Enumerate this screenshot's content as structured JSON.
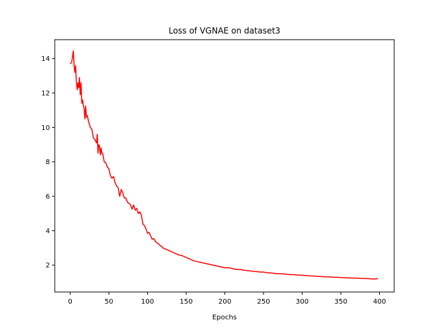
{
  "chart_data": {
    "type": "line",
    "title": "Loss of VGNAE on dataset3",
    "xlabel": "Epochs",
    "ylabel": "",
    "xlim": [
      -20,
      419
    ],
    "ylim": [
      0.44,
      15.1
    ],
    "xticks": [
      0,
      50,
      100,
      150,
      200,
      250,
      300,
      350,
      400
    ],
    "yticks": [
      2,
      4,
      6,
      8,
      10,
      12,
      14
    ],
    "grid": false,
    "series": [
      {
        "color": "#ff0000",
        "x": [
          0,
          2,
          4,
          5,
          6,
          7,
          8,
          9,
          10,
          11,
          12,
          13,
          14,
          15,
          16,
          17,
          18,
          19,
          20,
          21,
          22,
          24,
          26,
          28,
          30,
          32,
          34,
          35,
          36,
          37,
          38,
          39,
          40,
          41,
          42,
          44,
          46,
          48,
          50,
          52,
          54,
          56,
          58,
          60,
          62,
          64,
          66,
          68,
          70,
          72,
          74,
          76,
          78,
          80,
          82,
          84,
          86,
          88,
          90,
          92,
          94,
          96,
          98,
          100,
          102,
          104,
          106,
          108,
          110,
          112,
          114,
          116,
          118,
          120,
          125,
          130,
          135,
          140,
          145,
          150,
          155,
          160,
          165,
          170,
          175,
          180,
          185,
          190,
          195,
          200,
          205,
          210,
          215,
          220,
          225,
          230,
          235,
          240,
          245,
          250,
          255,
          260,
          265,
          270,
          275,
          280,
          285,
          290,
          295,
          300,
          305,
          310,
          315,
          320,
          325,
          330,
          335,
          340,
          345,
          350,
          355,
          360,
          365,
          370,
          375,
          380,
          385,
          390,
          395,
          398
        ],
        "y": [
          13.7,
          13.8,
          14.45,
          13.6,
          13.2,
          13.6,
          12.6,
          12.2,
          12.6,
          12.3,
          12.9,
          11.9,
          12.6,
          11.4,
          11.6,
          11.3,
          11.1,
          10.5,
          11.25,
          10.6,
          10.7,
          10.3,
          10.0,
          9.9,
          9.4,
          9.3,
          9.1,
          9.6,
          8.5,
          9.0,
          8.9,
          8.4,
          8.8,
          8.5,
          8.5,
          8.0,
          7.95,
          7.7,
          7.6,
          7.2,
          7.05,
          7.15,
          6.8,
          6.6,
          6.5,
          6.0,
          6.4,
          6.2,
          5.9,
          5.9,
          5.65,
          5.6,
          5.5,
          5.25,
          5.5,
          5.2,
          5.3,
          5.0,
          5.1,
          4.9,
          4.4,
          4.3,
          4.1,
          3.85,
          3.9,
          3.7,
          3.5,
          3.55,
          3.4,
          3.3,
          3.25,
          3.15,
          3.1,
          3.0,
          2.9,
          2.8,
          2.7,
          2.6,
          2.55,
          2.45,
          2.35,
          2.25,
          2.2,
          2.15,
          2.1,
          2.05,
          2.0,
          1.95,
          1.9,
          1.85,
          1.85,
          1.8,
          1.75,
          1.75,
          1.7,
          1.68,
          1.65,
          1.63,
          1.6,
          1.6,
          1.55,
          1.55,
          1.52,
          1.5,
          1.5,
          1.47,
          1.45,
          1.45,
          1.42,
          1.42,
          1.4,
          1.38,
          1.37,
          1.35,
          1.34,
          1.32,
          1.32,
          1.3,
          1.3,
          1.28,
          1.27,
          1.26,
          1.25,
          1.25,
          1.23,
          1.22,
          1.22,
          1.2,
          1.2,
          1.22
        ]
      }
    ]
  }
}
